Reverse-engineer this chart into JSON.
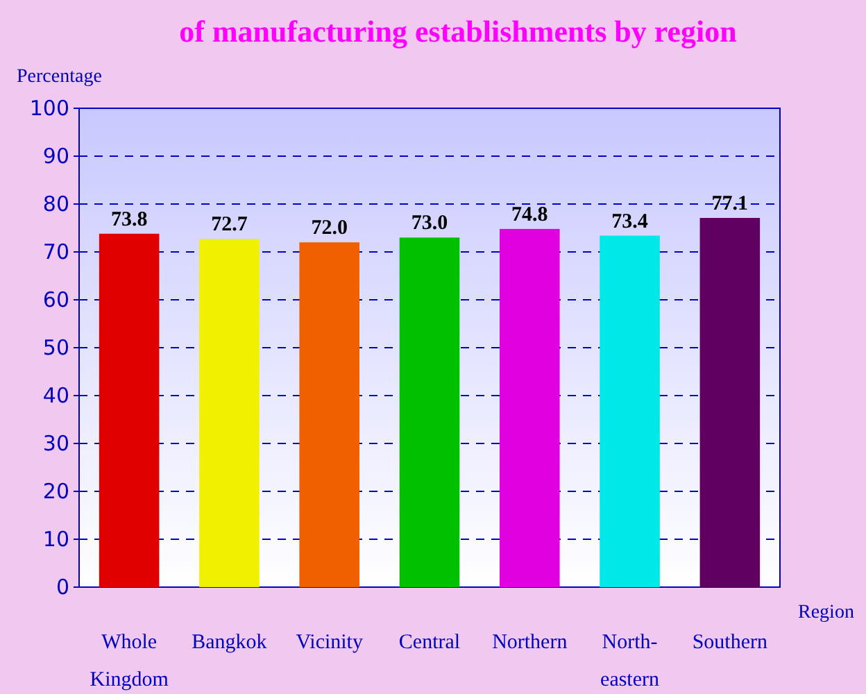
{
  "chart_data": {
    "type": "bar",
    "title": "of manufacturing  establishments by region",
    "xlabel": "Region",
    "ylabel": "Percentage",
    "categories": [
      "Whole Kingdom",
      "Bangkok",
      "Vicinity",
      "Central",
      "Northern",
      "North-eastern",
      "Southern"
    ],
    "values": [
      73.8,
      72.7,
      72.0,
      73.0,
      74.8,
      73.4,
      77.1
    ],
    "value_labels": [
      "73.8",
      "72.7",
      "72.0",
      "73.0",
      "74.8",
      "73.4",
      "77.1"
    ],
    "colors": [
      "#e00000",
      "#f0f000",
      "#f06000",
      "#00c000",
      "#e000e0",
      "#00e8e8",
      "#600060"
    ],
    "ylim": [
      0,
      100
    ],
    "yticks": [
      0,
      10,
      20,
      30,
      40,
      50,
      60,
      70,
      80,
      90,
      100
    ],
    "grid": "y"
  }
}
